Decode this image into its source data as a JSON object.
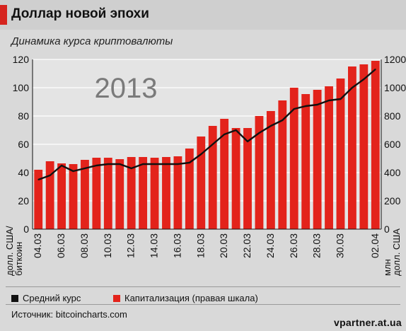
{
  "header": {
    "title": "Доллар новой эпохи",
    "subtitle": "Динамика курса криптовалюты",
    "accent_color": "#d6241e"
  },
  "legend": {
    "items": [
      {
        "label": "Средний курс",
        "color": "#111111"
      },
      {
        "label": "Капитализация (правая шкала)",
        "color": "#e3231b"
      }
    ]
  },
  "source": "Источник: bitcoincharts.com",
  "watermark": "vpartner.at.ua",
  "chart_data": {
    "type": "bar+line",
    "annotation": "2013",
    "categories": [
      "04.03",
      "05.03",
      "06.03",
      "07.03",
      "08.03",
      "09.03",
      "10.03",
      "11.03",
      "12.03",
      "13.03",
      "14.03",
      "15.03",
      "16.03",
      "17.03",
      "18.03",
      "19.03",
      "20.03",
      "21.03",
      "22.03",
      "23.03",
      "24.03",
      "25.03",
      "26.03",
      "27.03",
      "28.03",
      "29.03",
      "30.03",
      "31.03",
      "01.04",
      "02.04"
    ],
    "x_tick_labels": [
      "04.03",
      "06.03",
      "08.03",
      "10.03",
      "12.03",
      "14.03",
      "16.03",
      "18.03",
      "20.03",
      "22.03",
      "24.03",
      "26.03",
      "28.03",
      "30.03",
      "02.04"
    ],
    "series": [
      {
        "name": "Капитализация (правая шкала)",
        "kind": "bar",
        "axis": "right",
        "color": "#e3231b",
        "values": [
          420,
          480,
          465,
          460,
          490,
          505,
          505,
          495,
          510,
          510,
          505,
          510,
          515,
          570,
          655,
          730,
          780,
          715,
          715,
          800,
          835,
          910,
          1000,
          955,
          985,
          1010,
          1065,
          1150,
          1165,
          1190
        ]
      },
      {
        "name": "Средний курс",
        "kind": "line",
        "axis": "left",
        "color": "#111111",
        "values": [
          35,
          38,
          45,
          41,
          43,
          45,
          46,
          46,
          43,
          46,
          46,
          46,
          46,
          47,
          53,
          60,
          67,
          70,
          62,
          68,
          73,
          77,
          85,
          87,
          88,
          91,
          92,
          100,
          106,
          113
        ]
      }
    ],
    "y_left": {
      "label": "долл. США/ биткоин",
      "label_lines": [
        "долл. США/",
        "биткоин"
      ],
      "ticks": [
        0,
        20,
        40,
        60,
        80,
        100,
        120
      ],
      "range": [
        0,
        120
      ]
    },
    "y_right": {
      "label": "млн долл. США",
      "label_lines": [
        "млн",
        "долл. США"
      ],
      "ticks": [
        0,
        200,
        400,
        600,
        800,
        1000,
        1200
      ],
      "range": [
        0,
        1200
      ]
    },
    "grid": true
  }
}
